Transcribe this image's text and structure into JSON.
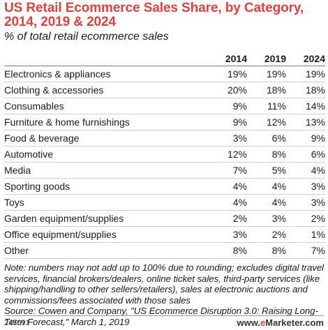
{
  "chart_data": {
    "type": "table",
    "title": "US Retail Ecommerce Sales Share, by Category, 2014, 2019 & 2024",
    "subtitle": "% of total retail ecommerce sales",
    "columns": [
      "2014",
      "2019",
      "2024"
    ],
    "rows": [
      {
        "category": "Electronics & appliances",
        "values": [
          "19%",
          "19%",
          "19%"
        ]
      },
      {
        "category": "Clothing & accessories",
        "values": [
          "20%",
          "18%",
          "18%"
        ]
      },
      {
        "category": "Consumables",
        "values": [
          "9%",
          "11%",
          "14%"
        ]
      },
      {
        "category": "Furniture & home furnishings",
        "values": [
          "9%",
          "12%",
          "13%"
        ]
      },
      {
        "category": "Food & beverage",
        "values": [
          "3%",
          "6%",
          "9%"
        ]
      },
      {
        "category": "Automotive",
        "values": [
          "12%",
          "8%",
          "6%"
        ]
      },
      {
        "category": "Media",
        "values": [
          "7%",
          "5%",
          "4%"
        ]
      },
      {
        "category": "Sporting goods",
        "values": [
          "4%",
          "4%",
          "3%"
        ]
      },
      {
        "category": "Toys",
        "values": [
          "4%",
          "4%",
          "3%"
        ]
      },
      {
        "category": "Garden equipment/supplies",
        "values": [
          "2%",
          "3%",
          "2%"
        ]
      },
      {
        "category": "Office equipment/supplies",
        "values": [
          "3%",
          "2%",
          "1%"
        ]
      },
      {
        "category": "Other",
        "values": [
          "8%",
          "8%",
          "7%"
        ]
      }
    ],
    "note": "Note: numbers may not add up to 100% due to rounding; excludes digital travel services, financial brokers/dealers, online ticket sales, third-party services (like shipping/handling to other sellers/retailers), sales at electronic auctions and commissions/fees associated with those sales",
    "source": "Source: Cowen and Company, \"US Ecommerce Disruption 3.0: Raising Long-Term Forecast,\" March 1, 2019"
  },
  "footer": {
    "chart_id": "245691",
    "brand_prefix": "www.",
    "brand_highlight": "e",
    "brand_suffix": "Marketer.com"
  },
  "colors": {
    "title": "#e2403c",
    "text": "#1a1a1a"
  }
}
